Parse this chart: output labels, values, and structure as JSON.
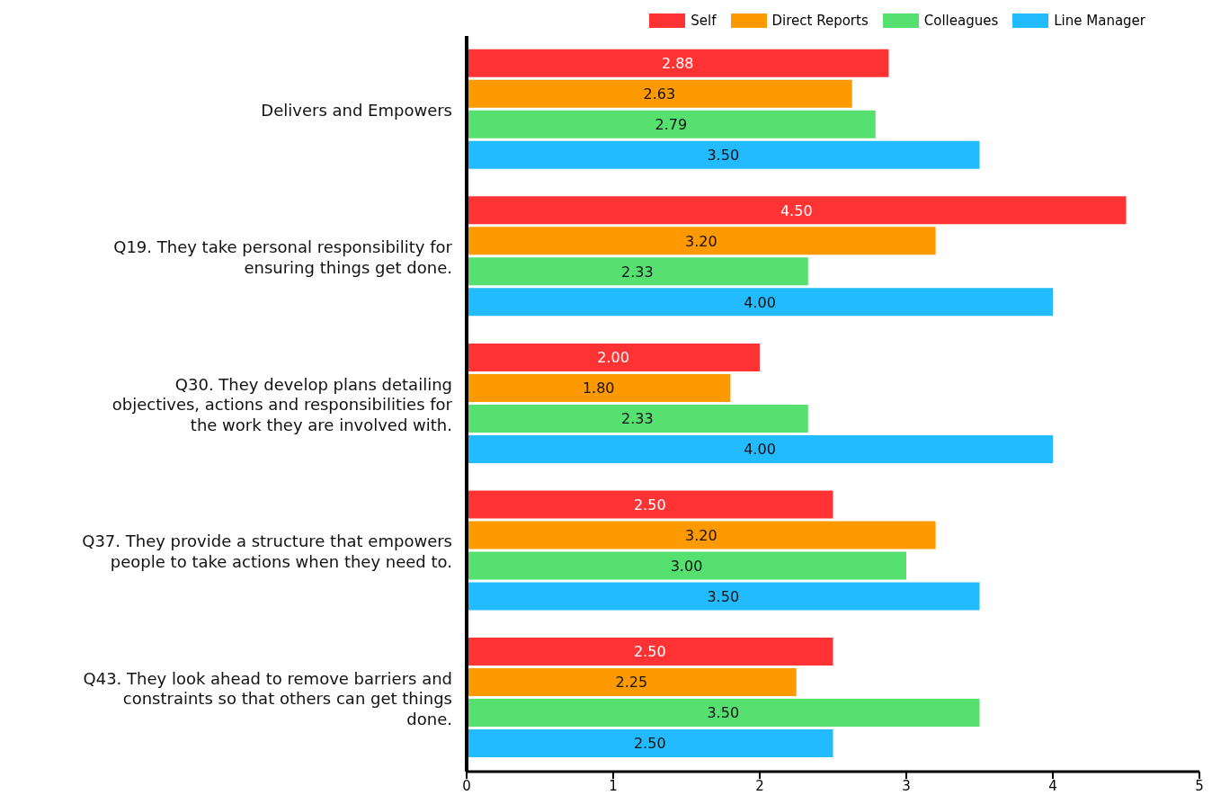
{
  "chart_data": {
    "type": "bar",
    "orientation": "horizontal",
    "categories": [
      "Delivers and Empowers",
      "Q19. They take personal responsibility for ensuring things get done.",
      "Q30. They develop plans detailing objectives, actions and responsibilities for the work they are involved with.",
      "Q37. They provide a structure that empowers people to take actions when they need to.",
      "Q43. They look ahead to remove barriers and constraints so that others can get things done."
    ],
    "series": [
      {
        "name": "Self",
        "color": "#ff3333",
        "values": [
          2.88,
          4.5,
          2.0,
          2.5,
          2.5
        ],
        "value_labels": [
          "2.88",
          "4.50",
          "2.00",
          "2.50",
          "2.50"
        ]
      },
      {
        "name": "Direct Reports",
        "color": "#ff9900",
        "values": [
          2.63,
          3.2,
          1.8,
          3.2,
          2.25
        ],
        "value_labels": [
          "2.63",
          "3.20",
          "1.80",
          "3.20",
          "2.25"
        ]
      },
      {
        "name": "Colleagues",
        "color": "#55e070",
        "values": [
          2.79,
          2.33,
          2.33,
          3.0,
          3.5
        ],
        "value_labels": [
          "2.79",
          "2.33",
          "2.33",
          "3.00",
          "3.50"
        ]
      },
      {
        "name": "Line Manager",
        "color": "#22bbff",
        "values": [
          3.5,
          4.0,
          4.0,
          3.5,
          2.5
        ],
        "value_labels": [
          "3.50",
          "4.00",
          "4.00",
          "3.50",
          "2.50"
        ]
      }
    ],
    "xlim": [
      0,
      5
    ],
    "xticks": [
      0,
      1,
      2,
      3,
      4,
      5
    ],
    "legend": "top right",
    "grid": false
  }
}
